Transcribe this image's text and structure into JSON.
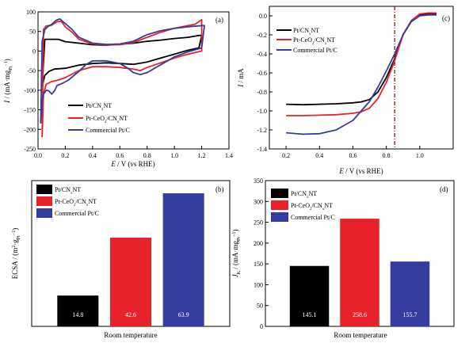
{
  "colors": {
    "black": "#000000",
    "red": "#e8222b",
    "blue": "#363c9e"
  },
  "chart_data": [
    {
      "panel": "a",
      "panel_label": "(a)",
      "type": "line",
      "xlabel": "E / V (vs RHE)",
      "ylabel": "I / (mA·mg_Pt^-1)",
      "xlim": [
        0.0,
        1.4
      ],
      "ylim": [
        -250,
        100
      ],
      "xticks": [
        "0.0",
        "0.2",
        "0.4",
        "0.6",
        "0.8",
        "1.0",
        "1.2",
        "1.4"
      ],
      "yticks": [
        "-250",
        "-200",
        "-150",
        "-100",
        "-50",
        "0",
        "50",
        "100"
      ],
      "legend_position": "lower-center",
      "series": [
        {
          "name": "Pt/CNxNT",
          "color": "black",
          "points": [
            [
              0.03,
              -90
            ],
            [
              0.05,
              -62
            ],
            [
              0.08,
              -52
            ],
            [
              0.12,
              -46
            ],
            [
              0.2,
              -44
            ],
            [
              0.3,
              -36
            ],
            [
              0.4,
              -32
            ],
            [
              0.5,
              -30
            ],
            [
              0.6,
              -32
            ],
            [
              0.7,
              -34
            ],
            [
              0.8,
              -28
            ],
            [
              0.9,
              -18
            ],
            [
              1.0,
              -8
            ],
            [
              1.1,
              2
            ],
            [
              1.18,
              8
            ],
            [
              1.2,
              40
            ],
            [
              1.18,
              40
            ],
            [
              1.1,
              35
            ],
            [
              1.0,
              32
            ],
            [
              0.9,
              28
            ],
            [
              0.8,
              25
            ],
            [
              0.7,
              20
            ],
            [
              0.6,
              17
            ],
            [
              0.5,
              15
            ],
            [
              0.4,
              16
            ],
            [
              0.3,
              20
            ],
            [
              0.2,
              24
            ],
            [
              0.15,
              30
            ],
            [
              0.1,
              30
            ],
            [
              0.05,
              30
            ],
            [
              0.03,
              -90
            ]
          ]
        },
        {
          "name": "Pt-CeO2/CNxNT",
          "color": "red",
          "points": [
            [
              0.03,
              -220
            ],
            [
              0.04,
              -110
            ],
            [
              0.06,
              -85
            ],
            [
              0.1,
              -78
            ],
            [
              0.15,
              -74
            ],
            [
              0.2,
              -68
            ],
            [
              0.3,
              -50
            ],
            [
              0.4,
              -40
            ],
            [
              0.5,
              -40
            ],
            [
              0.6,
              -42
            ],
            [
              0.7,
              -46
            ],
            [
              0.75,
              -50
            ],
            [
              0.8,
              -42
            ],
            [
              0.9,
              -30
            ],
            [
              1.0,
              -18
            ],
            [
              1.1,
              -8
            ],
            [
              1.2,
              0
            ],
            [
              1.2,
              80
            ],
            [
              1.15,
              68
            ],
            [
              1.1,
              65
            ],
            [
              1.0,
              58
            ],
            [
              0.9,
              48
            ],
            [
              0.8,
              35
            ],
            [
              0.7,
              22
            ],
            [
              0.6,
              16
            ],
            [
              0.5,
              16
            ],
            [
              0.4,
              18
            ],
            [
              0.3,
              30
            ],
            [
              0.25,
              48
            ],
            [
              0.2,
              62
            ],
            [
              0.17,
              76
            ],
            [
              0.14,
              75
            ],
            [
              0.1,
              66
            ],
            [
              0.06,
              64
            ],
            [
              0.04,
              55
            ],
            [
              0.03,
              -220
            ]
          ]
        },
        {
          "name": "Commercial Pt/C",
          "color": "blue",
          "points": [
            [
              0.02,
              -185
            ],
            [
              0.03,
              -125
            ],
            [
              0.04,
              -110
            ],
            [
              0.06,
              -100
            ],
            [
              0.08,
              -102
            ],
            [
              0.1,
              -110
            ],
            [
              0.12,
              -102
            ],
            [
              0.14,
              -88
            ],
            [
              0.18,
              -82
            ],
            [
              0.22,
              -75
            ],
            [
              0.3,
              -52
            ],
            [
              0.35,
              -35
            ],
            [
              0.4,
              -25
            ],
            [
              0.5,
              -25
            ],
            [
              0.6,
              -32
            ],
            [
              0.65,
              -42
            ],
            [
              0.7,
              -55
            ],
            [
              0.75,
              -60
            ],
            [
              0.8,
              -55
            ],
            [
              0.9,
              -35
            ],
            [
              1.0,
              -15
            ],
            [
              1.1,
              -2
            ],
            [
              1.2,
              8
            ],
            [
              1.22,
              65
            ],
            [
              1.2,
              65
            ],
            [
              1.1,
              62
            ],
            [
              1.0,
              58
            ],
            [
              0.9,
              52
            ],
            [
              0.8,
              42
            ],
            [
              0.7,
              25
            ],
            [
              0.6,
              18
            ],
            [
              0.5,
              17
            ],
            [
              0.4,
              20
            ],
            [
              0.3,
              35
            ],
            [
              0.25,
              55
            ],
            [
              0.2,
              70
            ],
            [
              0.16,
              82
            ],
            [
              0.13,
              78
            ],
            [
              0.1,
              68
            ],
            [
              0.07,
              62
            ],
            [
              0.05,
              55
            ],
            [
              0.03,
              25
            ],
            [
              0.02,
              -185
            ]
          ]
        }
      ]
    },
    {
      "panel": "b",
      "panel_label": "(b)",
      "type": "bar",
      "xlabel": "Room temperature",
      "ylabel": "ECSA / (m²·g_Pt^-1)",
      "ylim": [
        0,
        70
      ],
      "legend_position": "top-left",
      "series": [
        {
          "name": "Pt/CNxNT",
          "color": "black",
          "value": 14.8,
          "label": "14.8"
        },
        {
          "name": "Pt-CeO2/CNxNT",
          "color": "red",
          "value": 42.6,
          "label": "42.6"
        },
        {
          "name": "Commercial Pt/C",
          "color": "blue",
          "value": 63.9,
          "label": "63.9"
        }
      ]
    },
    {
      "panel": "c",
      "panel_label": "(c)",
      "type": "line",
      "xlabel": "E / V (vs RHE)",
      "ylabel": "I / mA",
      "xlim": [
        0.1,
        1.2
      ],
      "ylim": [
        -1.4,
        0.1
      ],
      "xticks": [
        "0.2",
        "0.4",
        "0.6",
        "0.8",
        "1.0"
      ],
      "yticks": [
        "-1.4",
        "-1.2",
        "-1.0",
        "-0.8",
        "-0.6",
        "-0.4",
        "-0.2",
        "0.0"
      ],
      "reference_line_x": 0.85,
      "legend_position": "top-left",
      "series": [
        {
          "name": "Pt/CNxNT",
          "color": "black",
          "points": [
            [
              0.2,
              -0.93
            ],
            [
              0.3,
              -0.935
            ],
            [
              0.4,
              -0.93
            ],
            [
              0.5,
              -0.925
            ],
            [
              0.6,
              -0.915
            ],
            [
              0.65,
              -0.905
            ],
            [
              0.7,
              -0.88
            ],
            [
              0.75,
              -0.8
            ],
            [
              0.8,
              -0.65
            ],
            [
              0.85,
              -0.45
            ],
            [
              0.9,
              -0.2
            ],
            [
              0.95,
              -0.05
            ],
            [
              1.0,
              0.01
            ],
            [
              1.05,
              0.02
            ],
            [
              1.1,
              0.02
            ]
          ]
        },
        {
          "name": "Pt-CeO2/CNxNT",
          "color": "red",
          "points": [
            [
              0.2,
              -1.05
            ],
            [
              0.3,
              -1.05
            ],
            [
              0.4,
              -1.045
            ],
            [
              0.5,
              -1.04
            ],
            [
              0.6,
              -1.025
            ],
            [
              0.65,
              -1.01
            ],
            [
              0.7,
              -0.97
            ],
            [
              0.75,
              -0.87
            ],
            [
              0.8,
              -0.7
            ],
            [
              0.85,
              -0.47
            ],
            [
              0.9,
              -0.2
            ],
            [
              0.95,
              -0.05
            ],
            [
              1.0,
              0.02
            ],
            [
              1.05,
              0.03
            ],
            [
              1.1,
              0.03
            ]
          ]
        },
        {
          "name": "Commercial Pt/C",
          "color": "blue",
          "points": [
            [
              0.2,
              -1.23
            ],
            [
              0.3,
              -1.245
            ],
            [
              0.4,
              -1.24
            ],
            [
              0.5,
              -1.2
            ],
            [
              0.6,
              -1.1
            ],
            [
              0.7,
              -0.9
            ],
            [
              0.75,
              -0.75
            ],
            [
              0.8,
              -0.58
            ],
            [
              0.85,
              -0.4
            ],
            [
              0.9,
              -0.2
            ],
            [
              0.95,
              -0.06
            ],
            [
              1.0,
              0.0
            ],
            [
              1.05,
              0.01
            ],
            [
              1.1,
              0.01
            ]
          ]
        }
      ]
    },
    {
      "panel": "d",
      "panel_label": "(d)",
      "type": "bar",
      "xlabel": "Room temperature",
      "ylabel": "J_K / (mA·mg_Pt^-1)",
      "ylim": [
        0,
        350
      ],
      "yticks": [
        "0",
        "50",
        "100",
        "150",
        "200",
        "250",
        "300",
        "350"
      ],
      "legend_position": "top-left",
      "series": [
        {
          "name": "Pt/CNxNT",
          "color": "black",
          "value": 145.1,
          "label": "145.1"
        },
        {
          "name": "Pt-CeO2/CNxNT",
          "color": "red",
          "value": 258.6,
          "label": "258.6"
        },
        {
          "name": "Commercial Pt/C",
          "color": "blue",
          "value": 155.7,
          "label": "155.7"
        }
      ]
    }
  ]
}
